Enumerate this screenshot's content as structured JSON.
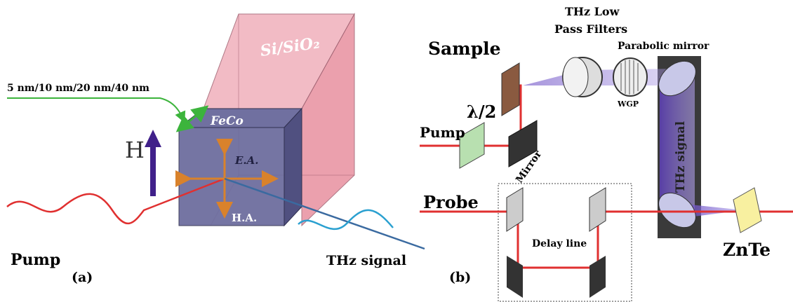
{
  "panel_a": {
    "thickness_label": "5 nm/10 nm/20 nm/40 nm",
    "substrate_label": "Si/SiO₂",
    "film_label": "FeCo",
    "field_label": "H",
    "easy_axis_label": "E.A.",
    "hard_axis_label": "H.A.",
    "pump_label": "Pump",
    "signal_label": "THz signal",
    "panel_label": "(a)"
  },
  "panel_b": {
    "filters_label": [
      "THz Low",
      "Pass Filters"
    ],
    "sample_label": "Sample",
    "parabolic_label": "Parabolic mirror",
    "waveplate_label": "λ/2",
    "pump_label": "Pump",
    "mirror_label": "Mirror",
    "wgp_label": "WGP",
    "signal_label": "THz signal",
    "probe_label": "Probe",
    "delay_label": "Delay line",
    "crystal_label": "ZnTe",
    "panel_label": "(b)"
  }
}
